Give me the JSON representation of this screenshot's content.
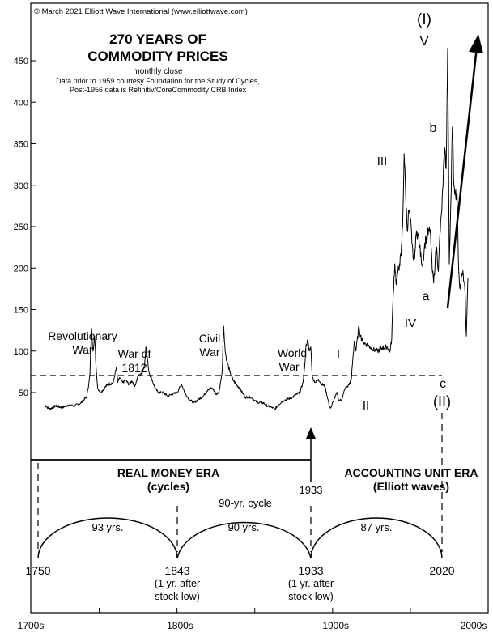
{
  "copyright": "© March 2021 Elliott Wave International (www.elliottwave.com)",
  "chart_data": {
    "type": "line",
    "title_line1": "270 YEARS OF",
    "title_line2": "COMMODITY PRICES",
    "subtitle": "monthly close",
    "note_line1": "Data prior to 1959 courtesy Foundation for the Study of Cycles,",
    "note_line2": "Post-1956 data is Refinitiv/CoreCommodity CRB Index",
    "y_ticks": [
      50,
      100,
      150,
      200,
      250,
      300,
      350,
      400,
      450
    ],
    "y_tick_labels": [
      "50",
      "100",
      "150",
      "200",
      "250",
      "300",
      "350",
      "400",
      "450"
    ],
    "ylim": [
      20,
      490
    ],
    "xlim": [
      1740,
      2034
    ],
    "x_tick_years": [
      1700,
      1750,
      1800,
      1850,
      1900,
      1950,
      2000
    ],
    "x_tick_labels": [
      {
        "text": "1700s",
        "year": 1740
      },
      {
        "text": "1800s",
        "year": 1836
      },
      {
        "text": "1900s",
        "year": 1936
      },
      {
        "text": "2000s",
        "year": 2036
      }
    ],
    "series": [
      {
        "color": "#000000",
        "points": [
          [
            1749,
            35
          ],
          [
            1752,
            30
          ],
          [
            1756,
            34
          ],
          [
            1760,
            32
          ],
          [
            1764,
            35
          ],
          [
            1768,
            34
          ],
          [
            1772,
            37
          ],
          [
            1776,
            45
          ],
          [
            1778,
            70
          ],
          [
            1779,
            128
          ],
          [
            1780,
            100
          ],
          [
            1781,
            118
          ],
          [
            1782,
            80
          ],
          [
            1783,
            55
          ],
          [
            1785,
            50
          ],
          [
            1788,
            57
          ],
          [
            1790,
            60
          ],
          [
            1793,
            62
          ],
          [
            1795,
            80
          ],
          [
            1796,
            62
          ],
          [
            1797,
            68
          ],
          [
            1799,
            62
          ],
          [
            1801,
            65
          ],
          [
            1803,
            60
          ],
          [
            1805,
            64
          ],
          [
            1807,
            58
          ],
          [
            1809,
            70
          ],
          [
            1811,
            72
          ],
          [
            1813,
            82
          ],
          [
            1814,
            105
          ],
          [
            1815,
            90
          ],
          [
            1816,
            75
          ],
          [
            1818,
            65
          ],
          [
            1820,
            55
          ],
          [
            1822,
            50
          ],
          [
            1825,
            50
          ],
          [
            1828,
            46
          ],
          [
            1831,
            48
          ],
          [
            1834,
            50
          ],
          [
            1837,
            60
          ],
          [
            1839,
            50
          ],
          [
            1841,
            44
          ],
          [
            1843,
            40
          ],
          [
            1845,
            38
          ],
          [
            1848,
            42
          ],
          [
            1851,
            46
          ],
          [
            1854,
            54
          ],
          [
            1857,
            55
          ],
          [
            1859,
            48
          ],
          [
            1861,
            50
          ],
          [
            1863,
            75
          ],
          [
            1864,
            130
          ],
          [
            1865,
            100
          ],
          [
            1866,
            88
          ],
          [
            1868,
            75
          ],
          [
            1870,
            65
          ],
          [
            1872,
            60
          ],
          [
            1874,
            56
          ],
          [
            1876,
            50
          ],
          [
            1878,
            44
          ],
          [
            1880,
            45
          ],
          [
            1882,
            44
          ],
          [
            1884,
            40
          ],
          [
            1886,
            38
          ],
          [
            1888,
            38
          ],
          [
            1890,
            37
          ],
          [
            1892,
            34
          ],
          [
            1895,
            32
          ],
          [
            1897,
            30
          ],
          [
            1899,
            35
          ],
          [
            1902,
            40
          ],
          [
            1905,
            42
          ],
          [
            1908,
            44
          ],
          [
            1911,
            48
          ],
          [
            1913,
            50
          ],
          [
            1915,
            62
          ],
          [
            1916,
            80
          ],
          [
            1917,
            108
          ],
          [
            1918,
            112
          ],
          [
            1919,
            100
          ],
          [
            1920,
            105
          ],
          [
            1921,
            68
          ],
          [
            1923,
            62
          ],
          [
            1925,
            66
          ],
          [
            1927,
            60
          ],
          [
            1929,
            58
          ],
          [
            1931,
            42
          ],
          [
            1932,
            33
          ],
          [
            1933,
            32
          ],
          [
            1935,
            42
          ],
          [
            1937,
            50
          ],
          [
            1938,
            40
          ],
          [
            1940,
            42
          ],
          [
            1942,
            55
          ],
          [
            1944,
            58
          ],
          [
            1946,
            65
          ],
          [
            1947,
            90
          ],
          [
            1948,
            112
          ],
          [
            1949,
            100
          ],
          [
            1951,
            130
          ],
          [
            1952,
            118
          ],
          [
            1954,
            110
          ],
          [
            1956,
            108
          ],
          [
            1958,
            105
          ],
          [
            1960,
            102
          ],
          [
            1963,
            100
          ],
          [
            1966,
            104
          ],
          [
            1969,
            105
          ],
          [
            1971,
            100
          ],
          [
            1972,
            115
          ],
          [
            1973,
            170
          ],
          [
            1974,
            205
          ],
          [
            1975,
            180
          ],
          [
            1976,
            195
          ],
          [
            1977,
            205
          ],
          [
            1978,
            215
          ],
          [
            1979,
            250
          ],
          [
            1980,
            338
          ],
          [
            1981,
            290
          ],
          [
            1982,
            245
          ],
          [
            1983,
            270
          ],
          [
            1984,
            260
          ],
          [
            1985,
            230
          ],
          [
            1986,
            210
          ],
          [
            1987,
            220
          ],
          [
            1988,
            245
          ],
          [
            1989,
            240
          ],
          [
            1990,
            225
          ],
          [
            1991,
            210
          ],
          [
            1992,
            205
          ],
          [
            1993,
            225
          ],
          [
            1994,
            235
          ],
          [
            1995,
            240
          ],
          [
            1996,
            245
          ],
          [
            1997,
            240
          ],
          [
            1998,
            200
          ],
          [
            1999,
            182
          ],
          [
            2000,
            212
          ],
          [
            2001,
            225
          ],
          [
            2002,
            196
          ],
          [
            2003,
            240
          ],
          [
            2004,
            265
          ],
          [
            2005,
            300
          ],
          [
            2006,
            345
          ],
          [
            2007,
            320
          ],
          [
            2008,
            465
          ],
          [
            2009,
            205
          ],
          [
            2010,
            280
          ],
          [
            2011,
            370
          ],
          [
            2012,
            300
          ],
          [
            2013,
            290
          ],
          [
            2014,
            290
          ],
          [
            2015,
            200
          ],
          [
            2016,
            175
          ],
          [
            2017,
            190
          ],
          [
            2018,
            192
          ],
          [
            2019,
            175
          ],
          [
            2020,
            118
          ],
          [
            2021,
            188
          ]
        ]
      }
    ],
    "annotations": {
      "revolutionary": [
        "Revolutionary",
        "War"
      ],
      "war1812": [
        "War of",
        "1812"
      ],
      "civil": [
        "Civil",
        "War"
      ],
      "ww1": [
        "World",
        "War I"
      ],
      "wave_I_small": "I",
      "wave_II_small": "II",
      "wave_III": "III",
      "wave_IV": "IV",
      "wave_V": "V",
      "wave_big_I": "(I)",
      "wave_a": "a",
      "wave_b": "b",
      "wave_c": "c",
      "wave_big_II": "(II)",
      "real_money_era": "REAL MONEY ERA",
      "cycles": "(cycles)",
      "accounting_era": "ACCOUNTING UNIT ERA",
      "elliott_waves": "(Elliott waves)",
      "label_1933_top": "1933",
      "cycle_90yr": "90-yr. cycle",
      "cycle_93": "93 yrs.",
      "cycle_90": "90 yrs.",
      "cycle_87": "87 yrs.",
      "year_1750": "1750",
      "year_1843": "1843",
      "year_1933": "1933",
      "year_2020": "2020",
      "after_1843": [
        "(1 yr. after",
        "stock low)"
      ],
      "after_1933": [
        "(1 yr. after",
        "stock low)"
      ]
    }
  }
}
